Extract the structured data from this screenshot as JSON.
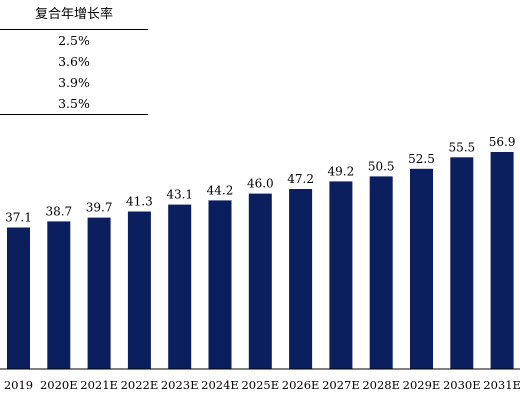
{
  "table": {
    "header": "复合年增长率",
    "rows": [
      "2.5%",
      "3.6%",
      "3.9%",
      "3.5%"
    ]
  },
  "chart_data": {
    "type": "bar",
    "categories": [
      "2019",
      "2020E",
      "2021E",
      "2022E",
      "2023E",
      "2024E",
      "2025E",
      "2026E",
      "2027E",
      "2028E",
      "2029E",
      "2030E",
      "2031E"
    ],
    "values": [
      37.1,
      38.7,
      39.7,
      41.3,
      43.1,
      44.2,
      46.0,
      47.2,
      49.2,
      50.5,
      52.5,
      55.5,
      56.9
    ],
    "value_labels": [
      "37.1",
      "38.7",
      "39.7",
      "41.3",
      "43.1",
      "44.2",
      "46.0",
      "47.2",
      "49.2",
      "50.5",
      "52.5",
      "55.5",
      "56.9"
    ],
    "title": "",
    "xlabel": "",
    "ylabel": "",
    "ylim": [
      0,
      56.9
    ],
    "grid": false,
    "colors": {
      "bar": "#0b1f5e",
      "axis": "#000000"
    }
  }
}
